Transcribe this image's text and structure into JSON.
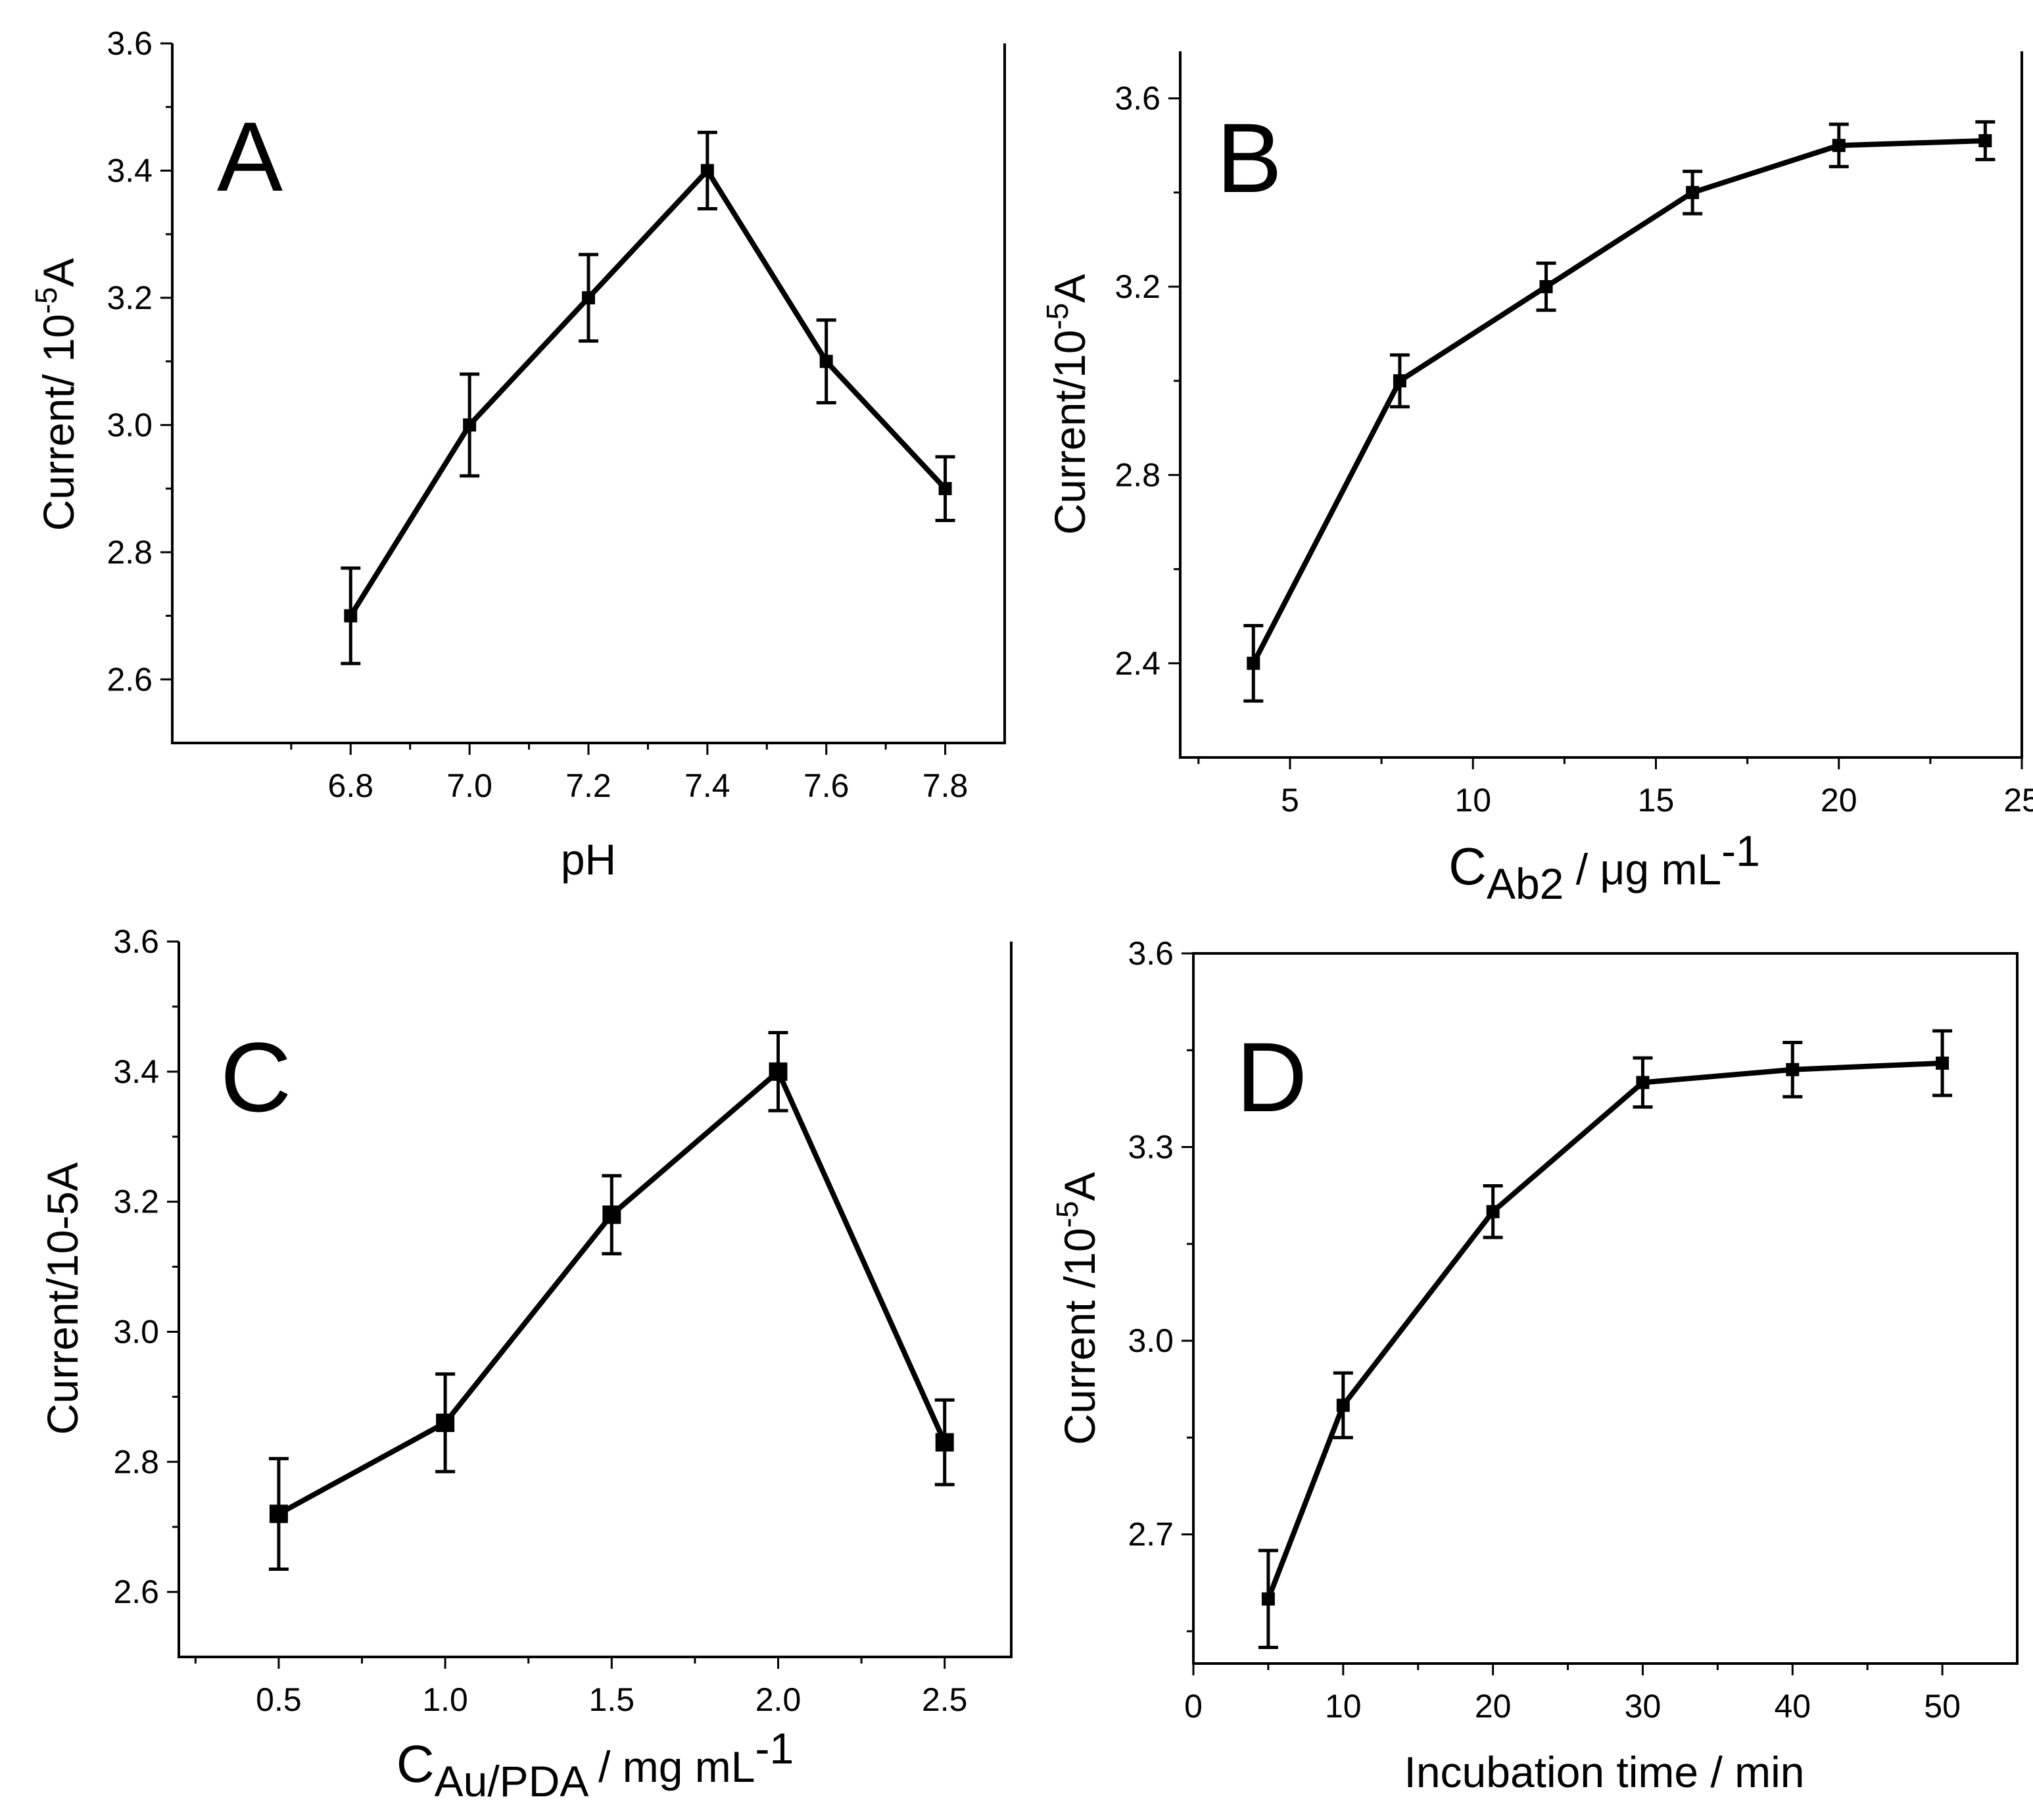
{
  "chart_data": [
    {
      "panel": "A",
      "type": "line",
      "title": "",
      "xlabel": "pH",
      "ylabel": "Current/ 10-5A",
      "ylabel_parts": {
        "main": "Current/ 10",
        "sup": "-5",
        "tail": "A"
      },
      "x": [
        6.8,
        7.0,
        7.2,
        7.4,
        7.6,
        7.8
      ],
      "y": [
        2.7,
        3.0,
        3.2,
        3.4,
        3.1,
        2.9
      ],
      "yerr": [
        0.075,
        0.08,
        0.068,
        0.06,
        0.065,
        0.05
      ],
      "xlim": [
        6.5,
        7.9
      ],
      "ylim": [
        2.5,
        3.6
      ],
      "xticks": [
        6.8,
        7.0,
        7.2,
        7.4,
        7.6,
        7.8
      ],
      "xtick_labels": [
        "6.8",
        "7.0",
        "7.2",
        "7.4",
        "7.6",
        "7.8"
      ],
      "yticks": [
        2.6,
        2.8,
        3.0,
        3.2,
        3.4,
        3.6
      ],
      "ytick_labels": [
        "2.6",
        "2.8",
        "3.0",
        "3.2",
        "3.4",
        "3.6"
      ],
      "frame": "open"
    },
    {
      "panel": "B",
      "type": "line",
      "title": "",
      "xlabel": "CAb2 / μg mL-1",
      "xlabel_parts": {
        "main": "C",
        "sub": "Ab2",
        "mid": " / μg mL",
        "sup": "-1"
      },
      "ylabel": "Current/10-5A",
      "ylabel_parts": {
        "main": "Current/10",
        "sup": "-5",
        "tail": "A"
      },
      "x": [
        4,
        8,
        12,
        16,
        20,
        24
      ],
      "y": [
        2.4,
        3.0,
        3.2,
        3.4,
        3.5,
        3.51
      ],
      "yerr": [
        0.08,
        0.055,
        0.05,
        0.045,
        0.045,
        0.04
      ],
      "xlim": [
        2,
        25
      ],
      "ylim": [
        2.2,
        3.7
      ],
      "xticks": [
        5,
        10,
        15,
        20,
        25
      ],
      "xtick_labels": [
        "5",
        "10",
        "15",
        "20",
        "25"
      ],
      "yticks": [
        2.4,
        2.8,
        3.2,
        3.6
      ],
      "ytick_labels": [
        "2.4",
        "2.8",
        "3.2",
        "3.6"
      ],
      "frame": "open"
    },
    {
      "panel": "C",
      "type": "line",
      "title": "",
      "xlabel": "CAu/PDA / mg mL-1",
      "xlabel_parts": {
        "main": "C",
        "sub": "Au/PDA",
        "mid": " / mg mL",
        "sup": "-1"
      },
      "ylabel": "Current/10-5A",
      "ylabel_parts": {
        "main": "Current/10-5A",
        "sup": "",
        "tail": ""
      },
      "x": [
        0.5,
        1.0,
        1.5,
        2.0,
        2.5
      ],
      "y": [
        2.72,
        2.86,
        3.18,
        3.4,
        2.83
      ],
      "yerr": [
        0.085,
        0.075,
        0.06,
        0.06,
        0.065
      ],
      "xlim": [
        0.2,
        2.7
      ],
      "ylim": [
        2.5,
        3.6
      ],
      "xticks": [
        0.5,
        1.0,
        1.5,
        2.0,
        2.5
      ],
      "xtick_labels": [
        "0.5",
        "1.0",
        "1.5",
        "2.0",
        "2.5"
      ],
      "yticks": [
        2.6,
        2.8,
        3.0,
        3.2,
        3.4,
        3.6
      ],
      "ytick_labels": [
        "2.6",
        "2.8",
        "3.0",
        "3.2",
        "3.4",
        "3.6"
      ],
      "frame": "open"
    },
    {
      "panel": "D",
      "type": "line",
      "title": "",
      "xlabel": "Incubation time / min",
      "ylabel": "Current /10-5A",
      "ylabel_parts": {
        "main": "Current /10",
        "sup": "-5",
        "tail": "A"
      },
      "x": [
        5,
        10,
        20,
        30,
        40,
        50
      ],
      "y": [
        2.6,
        2.9,
        3.2,
        3.4,
        3.42,
        3.43
      ],
      "yerr": [
        0.075,
        0.05,
        0.04,
        0.038,
        0.042,
        0.05
      ],
      "xlim": [
        0,
        55
      ],
      "ylim": [
        2.5,
        3.6
      ],
      "xticks": [
        0,
        10,
        20,
        30,
        40,
        50
      ],
      "xtick_labels": [
        "0",
        "10",
        "20",
        "30",
        "40",
        "50"
      ],
      "yticks": [
        2.7,
        3.0,
        3.3,
        3.6
      ],
      "ytick_labels": [
        "2.7",
        "3.0",
        "3.3",
        "3.6"
      ],
      "frame": "box"
    }
  ]
}
